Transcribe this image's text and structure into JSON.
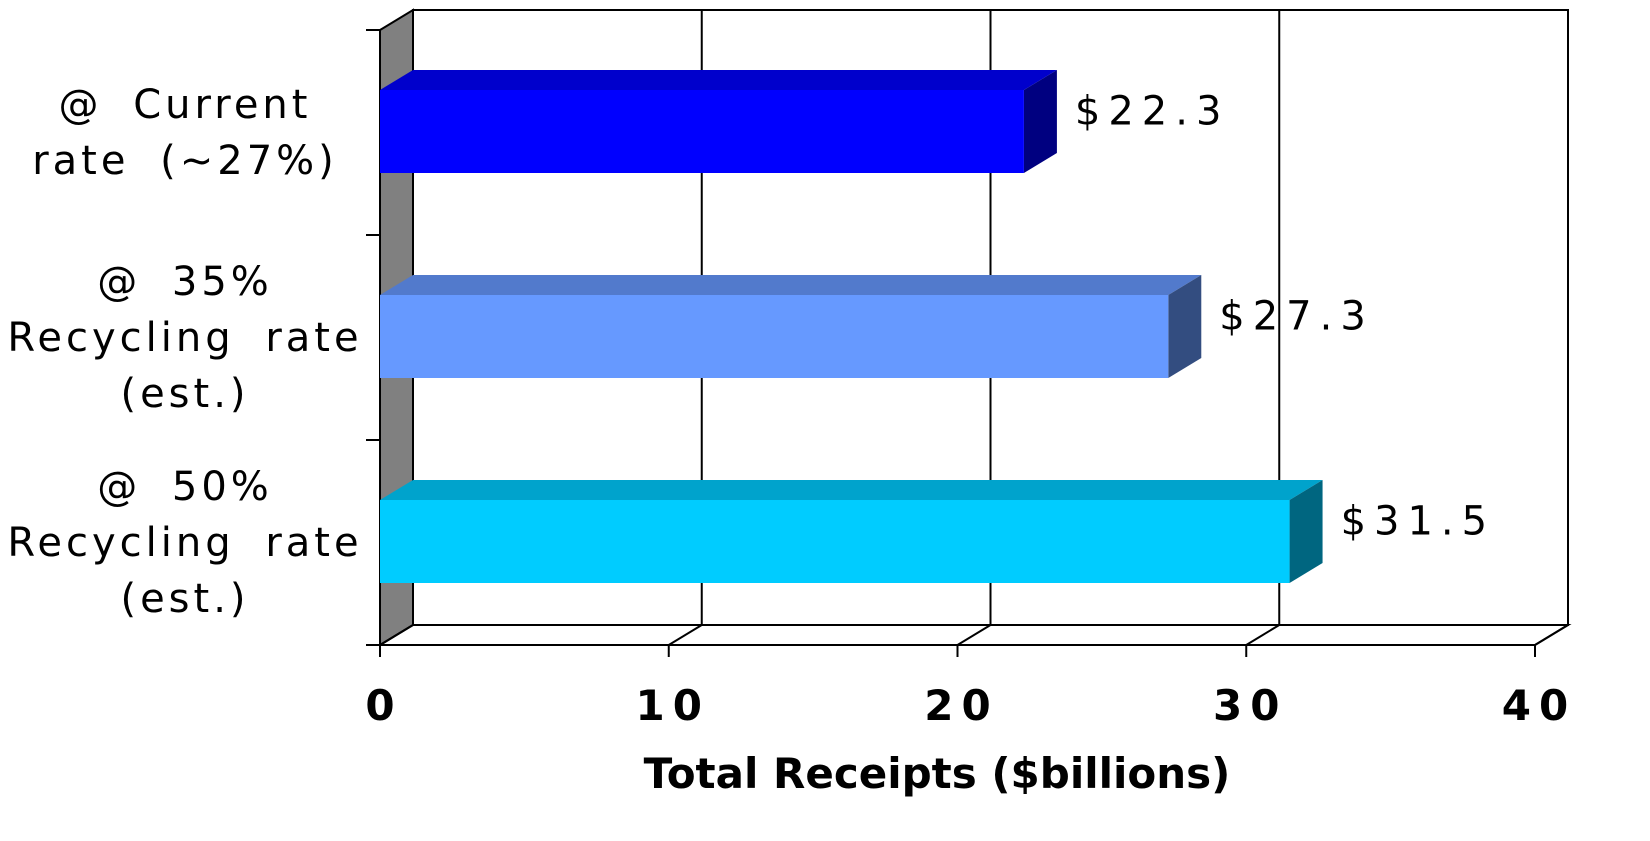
{
  "chart_data": {
    "type": "bar3d_horizontal",
    "categories": [
      "@ Current rate (~27%)",
      "@ 35% Recycling rate (est.)",
      "@ 50% Recycling rate (est.)"
    ],
    "values": [
      22.3,
      27.3,
      31.5
    ],
    "value_labels": [
      "$22.3",
      "$27.3",
      "$31.5"
    ],
    "colors": [
      "#0000ff",
      "#6699ff",
      "#00ccff"
    ],
    "xlim": [
      0,
      40
    ],
    "xticks": [
      0,
      10,
      20,
      30,
      40
    ],
    "x_label": "Total Receipts ($billions)",
    "grid": true
  }
}
